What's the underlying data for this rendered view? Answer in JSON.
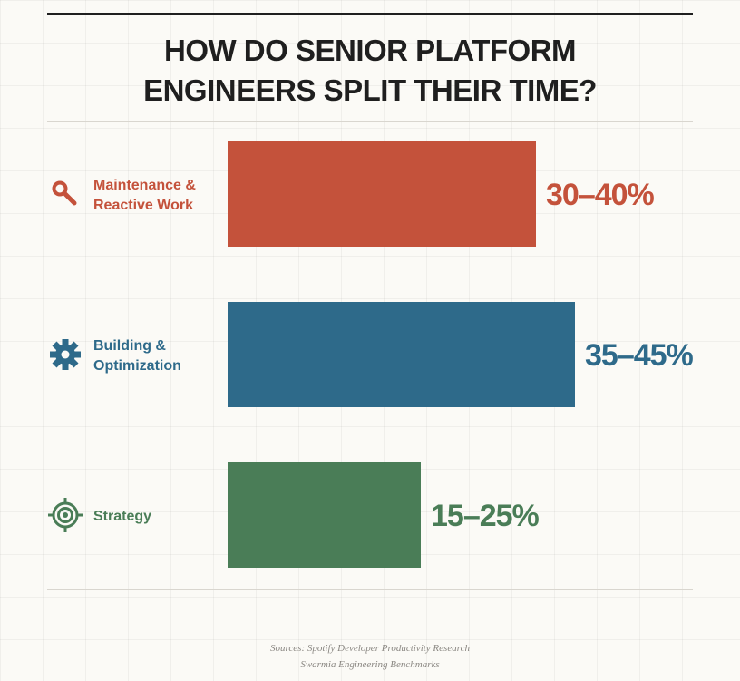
{
  "title": {
    "line1": "HOW DO SENIOR PLATFORM",
    "line2": "ENGINEERS SPLIT THEIR TIME?"
  },
  "chart_data": {
    "type": "bar",
    "orientation": "horizontal",
    "title": "HOW DO SENIOR PLATFORM ENGINEERS SPLIT THEIR TIME?",
    "categories": [
      {
        "lines": [
          "Maintenance &",
          "Reactive Work"
        ],
        "icon": "wrench-icon",
        "color": "#c4523b",
        "value_label": "30–40%",
        "range": [
          30,
          40
        ]
      },
      {
        "lines": [
          "Building &",
          "Optimization"
        ],
        "icon": "gear-icon",
        "color": "#2e6a8a",
        "value_label": "35–45%",
        "range": [
          35,
          45
        ]
      },
      {
        "lines": [
          "Strategy"
        ],
        "icon": "target-icon",
        "color": "#4a7d57",
        "value_label": "15–25%",
        "range": [
          15,
          25
        ]
      }
    ],
    "bar_value": "upper bound of range",
    "xlim": [
      0,
      45
    ],
    "grid": false,
    "legend": "none"
  },
  "sources": {
    "line1": "Sources: Spotify Developer Productivity Research",
    "line2": "Swarmia Engineering Benchmarks"
  }
}
